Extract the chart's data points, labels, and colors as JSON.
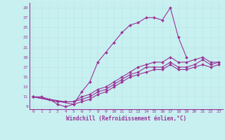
{
  "background_color": "#c8f0f0",
  "line_color": "#993399",
  "grid_color": "#b8e8e8",
  "xlim": [
    -0.5,
    23.5
  ],
  "ylim": [
    8.5,
    30
  ],
  "xticks": [
    0,
    1,
    2,
    3,
    4,
    5,
    6,
    7,
    8,
    9,
    10,
    11,
    12,
    13,
    14,
    15,
    16,
    17,
    18,
    19,
    20,
    21,
    22,
    23
  ],
  "yticks": [
    9,
    11,
    13,
    15,
    17,
    19,
    21,
    23,
    25,
    27,
    29
  ],
  "s1_x": [
    0,
    1,
    2,
    3,
    4,
    5,
    6,
    7,
    8,
    9,
    10,
    11,
    12,
    13,
    14,
    15,
    16,
    17,
    18,
    19
  ],
  "s1_y": [
    11,
    11,
    10.5,
    9.5,
    9,
    9.5,
    12,
    14,
    18,
    20,
    22,
    24,
    25.5,
    26,
    27,
    27,
    26.5,
    29,
    23,
    19
  ],
  "s2_x": [
    0,
    3,
    4,
    5,
    6,
    7,
    8,
    9,
    10,
    11,
    12,
    13,
    14,
    15,
    16,
    17,
    18,
    19,
    20,
    21,
    22,
    23
  ],
  "s2_y": [
    11,
    10,
    10,
    10,
    11,
    11.5,
    12.5,
    13,
    14,
    15,
    16,
    17,
    17.5,
    18,
    18,
    19,
    18,
    18,
    18.5,
    19,
    18,
    18
  ],
  "s3_x": [
    0,
    4,
    5,
    6,
    7,
    8,
    9,
    10,
    11,
    12,
    13,
    14,
    15,
    16,
    17,
    18,
    19,
    20,
    21,
    22,
    23
  ],
  "s3_y": [
    11,
    10,
    10,
    10.5,
    11,
    12,
    12.5,
    13.5,
    14.5,
    15.5,
    16,
    17,
    17,
    17,
    18,
    17,
    17,
    17.5,
    18.5,
    17.5,
    18
  ],
  "s4_x": [
    0,
    5,
    6,
    7,
    8,
    9,
    10,
    11,
    12,
    13,
    14,
    15,
    16,
    17,
    18,
    19,
    20,
    21,
    22,
    23
  ],
  "s4_y": [
    11,
    9.5,
    10,
    10.5,
    11.5,
    12,
    13,
    14,
    15,
    15.5,
    16,
    16.5,
    16.5,
    17.5,
    16.5,
    16.5,
    17,
    17.5,
    17,
    17.5
  ],
  "xlabel": "Windchill (Refroidissement éolien,°C)",
  "xlabel_fontsize": 5.5,
  "tick_fontsize": 4.5,
  "lw": 0.8,
  "ms": 2.0
}
